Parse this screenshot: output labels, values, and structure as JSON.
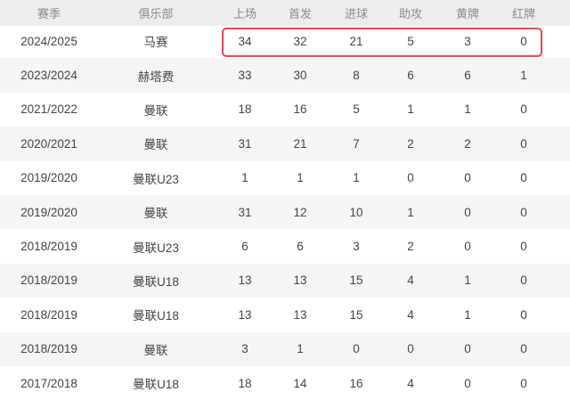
{
  "headers": [
    "赛季",
    "俱乐部",
    "上场",
    "首发",
    "进球",
    "助攻",
    "黄牌",
    "红牌"
  ],
  "highlight_color": "#e8455a",
  "rows": [
    [
      "2024/2025",
      "马赛",
      "34",
      "32",
      "21",
      "5",
      "3",
      "0"
    ],
    [
      "2023/2024",
      "赫塔费",
      "33",
      "30",
      "8",
      "6",
      "6",
      "1"
    ],
    [
      "2021/2022",
      "曼联",
      "18",
      "16",
      "5",
      "1",
      "1",
      "0"
    ],
    [
      "2020/2021",
      "曼联",
      "31",
      "21",
      "7",
      "2",
      "2",
      "0"
    ],
    [
      "2019/2020",
      "曼联U23",
      "1",
      "1",
      "1",
      "0",
      "0",
      "0"
    ],
    [
      "2019/2020",
      "曼联",
      "31",
      "12",
      "10",
      "1",
      "0",
      "0"
    ],
    [
      "2018/2019",
      "曼联U23",
      "6",
      "6",
      "3",
      "2",
      "0",
      "0"
    ],
    [
      "2018/2019",
      "曼联U18",
      "13",
      "13",
      "15",
      "4",
      "1",
      "0"
    ],
    [
      "2018/2019",
      "曼联U18",
      "13",
      "13",
      "15",
      "4",
      "1",
      "0"
    ],
    [
      "2018/2019",
      "曼联",
      "3",
      "1",
      "0",
      "0",
      "0",
      "0"
    ],
    [
      "2017/2018",
      "曼联U18",
      "18",
      "14",
      "16",
      "4",
      "0",
      "0"
    ]
  ]
}
